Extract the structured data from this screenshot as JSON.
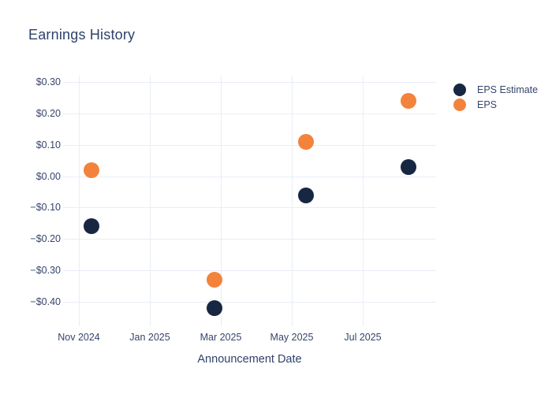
{
  "chart_data": {
    "type": "scatter",
    "title": "Earnings History",
    "xlabel": "Announcement Date",
    "ylabel": "",
    "grid": true,
    "legend_position": "right-top",
    "x_ticks": [
      {
        "label": "Nov 2024",
        "month_offset": 0
      },
      {
        "label": "Jan 2025",
        "month_offset": 2
      },
      {
        "label": "Mar 2025",
        "month_offset": 4
      },
      {
        "label": "May 2025",
        "month_offset": 6
      },
      {
        "label": "Jul 2025",
        "month_offset": 8
      }
    ],
    "y_ticks": [
      {
        "label": "$0.30",
        "value": 0.3
      },
      {
        "label": "$0.20",
        "value": 0.2
      },
      {
        "label": "$0.10",
        "value": 0.1
      },
      {
        "label": "$0.00",
        "value": 0.0
      },
      {
        "label": "−$0.10",
        "value": -0.1
      },
      {
        "label": "−$0.20",
        "value": -0.2
      },
      {
        "label": "−$0.30",
        "value": -0.3
      },
      {
        "label": "−$0.40",
        "value": -0.4
      }
    ],
    "ylim": [
      -0.48,
      0.32
    ],
    "xlim_month_offsets": [
      -0.44,
      10.07
    ],
    "series": [
      {
        "name": "EPS Estimate",
        "color": "#172642",
        "points": [
          {
            "month_offset": 0.35,
            "approx_period": "mid Nov 2024",
            "value": -0.16
          },
          {
            "month_offset": 3.82,
            "approx_period": "late Feb 2025",
            "value": -0.42
          },
          {
            "month_offset": 6.39,
            "approx_period": "mid May 2025",
            "value": -0.06
          },
          {
            "month_offset": 9.29,
            "approx_period": "early Aug 2025",
            "value": 0.03
          }
        ]
      },
      {
        "name": "EPS",
        "color": "#f3833c",
        "points": [
          {
            "month_offset": 0.35,
            "approx_period": "mid Nov 2024",
            "value": 0.02
          },
          {
            "month_offset": 3.82,
            "approx_period": "late Feb 2025",
            "value": -0.33
          },
          {
            "month_offset": 6.39,
            "approx_period": "mid May 2025",
            "value": 0.11
          },
          {
            "month_offset": 9.29,
            "approx_period": "early Aug 2025",
            "value": 0.24
          }
        ]
      }
    ],
    "colors": {
      "background": "#ffffff",
      "grid": "#e8eef5",
      "title_text": "#2e4269",
      "tick_text": "#36456b"
    }
  }
}
